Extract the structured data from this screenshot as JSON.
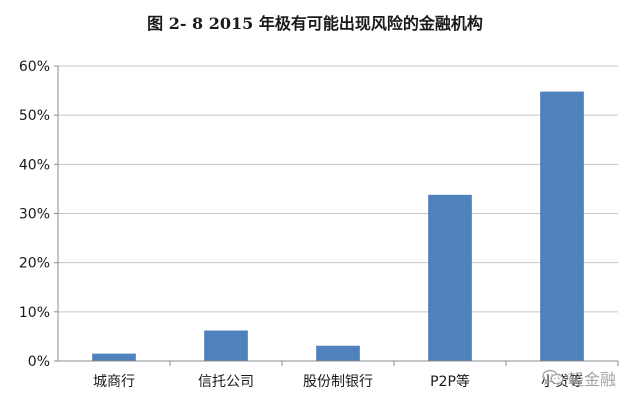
{
  "chart_data": {
    "type": "bar",
    "title": "图 2- 8    2015 年极有可能出现风险的金融机构",
    "categories": [
      "城商行",
      "信托公司",
      "股份制银行",
      "P2P等",
      "小贷等"
    ],
    "values": [
      1.5,
      6.2,
      3.1,
      33.8,
      54.8
    ],
    "ylim": [
      0,
      60
    ],
    "yticks": [
      "0%",
      "10%",
      "20%",
      "30%",
      "40%",
      "50%",
      "60%"
    ],
    "grid": true,
    "bar_color": "#4f81bd",
    "grid_color": "#c6c6c6",
    "axis_color": "#8c8c8c"
  },
  "watermark": {
    "text": "轻金融",
    "icon": "wechat-icon"
  }
}
